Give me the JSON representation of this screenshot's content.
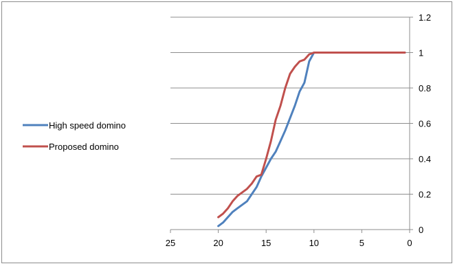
{
  "chart_data": {
    "type": "line",
    "title": "",
    "xlabel": "",
    "ylabel": "",
    "xlim": [
      25,
      0
    ],
    "ylim": [
      0,
      1.2
    ],
    "x_reversed": true,
    "y_axis_side": "right",
    "x_ticks": [
      25,
      20,
      15,
      10,
      5,
      0
    ],
    "x_tick_labels": [
      "25",
      "20",
      "15",
      "10",
      "5",
      "0"
    ],
    "y_ticks": [
      0,
      0.2,
      0.4,
      0.6,
      0.8,
      1,
      1.2
    ],
    "y_tick_labels": [
      "0",
      "0.2",
      "0.4",
      "0.6",
      "0.8",
      "1",
      "1.2"
    ],
    "grid": "horizontal major gridlines",
    "legend_position": "left",
    "series": [
      {
        "name": "High speed domino",
        "color": "#4f81bd",
        "x": [
          20,
          19.5,
          19,
          18.5,
          18,
          17.5,
          17,
          16.5,
          16,
          15.5,
          15,
          14.5,
          14,
          13.5,
          13,
          12.5,
          12,
          11.5,
          11,
          10.5,
          10,
          9.5,
          9,
          8,
          7,
          6,
          5,
          4,
          3,
          2,
          1,
          0.5
        ],
        "y": [
          0.02,
          0.04,
          0.07,
          0.1,
          0.12,
          0.14,
          0.16,
          0.2,
          0.24,
          0.3,
          0.35,
          0.4,
          0.44,
          0.5,
          0.56,
          0.63,
          0.7,
          0.78,
          0.83,
          0.95,
          1.0,
          1.0,
          1.0,
          1.0,
          1.0,
          1.0,
          1.0,
          1.0,
          1.0,
          1.0,
          1.0,
          1.0
        ]
      },
      {
        "name": "Proposed domino",
        "color": "#c0504d",
        "x": [
          20,
          19.5,
          19,
          18.5,
          18,
          17.5,
          17,
          16.5,
          16,
          15.5,
          15,
          14.5,
          14,
          13.5,
          13,
          12.5,
          12,
          11.5,
          11,
          10.5,
          10,
          9.5,
          9,
          8,
          7,
          6,
          5,
          4,
          3,
          2,
          1,
          0.5
        ],
        "y": [
          0.07,
          0.09,
          0.12,
          0.16,
          0.19,
          0.21,
          0.23,
          0.26,
          0.3,
          0.31,
          0.4,
          0.5,
          0.62,
          0.7,
          0.8,
          0.88,
          0.92,
          0.95,
          0.96,
          0.99,
          1.0,
          1.0,
          1.0,
          1.0,
          1.0,
          1.0,
          1.0,
          1.0,
          1.0,
          1.0,
          1.0,
          1.0
        ]
      }
    ]
  }
}
